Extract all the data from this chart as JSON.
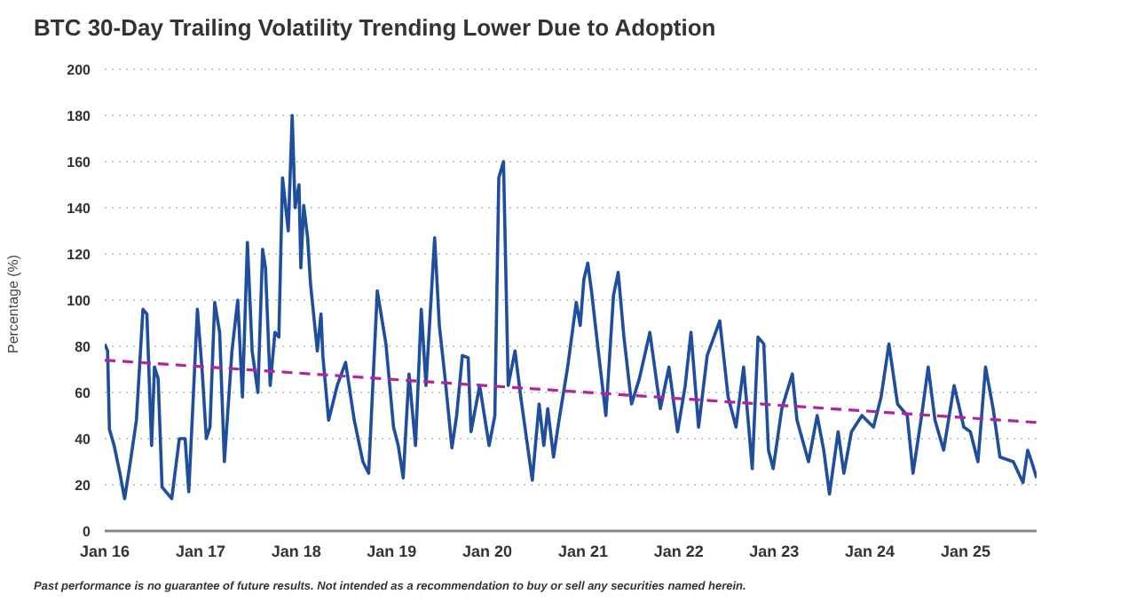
{
  "chart_data": {
    "type": "line",
    "title": "BTC 30-Day Trailing Volatility Trending Lower Due to Adoption",
    "ylabel": "Percentage (%)",
    "annotations": [
      "Past performance is no guarantee of future results. Not intended as a recommendation to buy or sell any securities named herein."
    ],
    "xlim": [
      "2016-01-01",
      "2025-09-29"
    ],
    "xticks": [
      {
        "value": "2016-01-01",
        "label": "Jan 16"
      },
      {
        "value": "2017-01-01",
        "label": "Jan 17"
      },
      {
        "value": "2018-01-01",
        "label": "Jan 18"
      },
      {
        "value": "2019-01-01",
        "label": "Jan 19"
      },
      {
        "value": "2020-01-01",
        "label": "Jan 20"
      },
      {
        "value": "2021-01-01",
        "label": "Jan 21"
      },
      {
        "value": "2022-01-01",
        "label": "Jan 22"
      },
      {
        "value": "2023-01-01",
        "label": "Jan 23"
      },
      {
        "value": "2024-01-01",
        "label": "Jan 24"
      },
      {
        "value": "2025-01-01",
        "label": "Jan 25"
      }
    ],
    "ylim": [
      0,
      200
    ],
    "yticks": [
      0,
      20,
      40,
      60,
      80,
      100,
      120,
      140,
      160,
      180,
      200
    ],
    "grid": "y",
    "marker": "none",
    "series": [
      {
        "type": "line",
        "color": "#1f4e9c",
        "line_style": "solid",
        "x": [
          "2016-01-01",
          "2016-01-12",
          "2016-01-19",
          "2016-02-06",
          "2016-02-28",
          "2016-03-17",
          "2016-04-08",
          "2016-05-01",
          "2016-05-26",
          "2016-06-10",
          "2016-06-28",
          "2016-07-09",
          "2016-07-23",
          "2016-08-07",
          "2016-09-13",
          "2016-10-12",
          "2016-11-03",
          "2016-11-17",
          "2016-12-20",
          "2017-01-08",
          "2017-01-23",
          "2017-02-06",
          "2017-02-24",
          "2017-03-15",
          "2017-04-02",
          "2017-05-01",
          "2017-05-23",
          "2017-06-10",
          "2017-06-29",
          "2017-07-17",
          "2017-08-08",
          "2017-08-26",
          "2017-09-06",
          "2017-09-24",
          "2017-10-12",
          "2017-10-27",
          "2017-11-10",
          "2017-12-02",
          "2017-12-17",
          "2017-12-28",
          "2018-01-12",
          "2018-01-19",
          "2018-01-30",
          "2018-02-14",
          "2018-02-25",
          "2018-03-23",
          "2018-04-06",
          "2018-04-13",
          "2018-05-05",
          "2018-06-07",
          "2018-07-09",
          "2018-08-11",
          "2018-09-13",
          "2018-10-05",
          "2018-11-07",
          "2018-12-10",
          "2019-01-08",
          "2019-01-26",
          "2019-02-14",
          "2019-03-08",
          "2019-04-02",
          "2019-04-24",
          "2019-05-12",
          "2019-06-14",
          "2019-07-02",
          "2019-07-24",
          "2019-08-19",
          "2019-09-06",
          "2019-09-28",
          "2019-10-20",
          "2019-10-31",
          "2019-12-03",
          "2020-01-08",
          "2020-01-30",
          "2020-02-14",
          "2020-03-03",
          "2020-03-21",
          "2020-04-16",
          "2020-05-08",
          "2020-06-21",
          "2020-07-17",
          "2020-08-04",
          "2020-08-19",
          "2020-09-10",
          "2020-10-01",
          "2020-11-03",
          "2020-12-06",
          "2020-12-21",
          "2021-01-04",
          "2021-01-19",
          "2021-02-02",
          "2021-02-28",
          "2021-03-29",
          "2021-04-27",
          "2021-05-15",
          "2021-06-06",
          "2021-07-05",
          "2021-08-04",
          "2021-09-13",
          "2021-10-23",
          "2021-11-25",
          "2021-12-28",
          "2022-01-26",
          "2022-02-17",
          "2022-03-18",
          "2022-04-20",
          "2022-06-07",
          "2022-07-09",
          "2022-08-08",
          "2022-09-06",
          "2022-10-09",
          "2022-10-31",
          "2022-11-22",
          "2022-12-10",
          "2022-12-28",
          "2023-01-30",
          "2023-03-11",
          "2023-03-29",
          "2023-05-12",
          "2023-06-14",
          "2023-07-09",
          "2023-07-31",
          "2023-09-02",
          "2023-09-24",
          "2023-10-23",
          "2023-12-02",
          "2024-01-15",
          "2024-02-13",
          "2024-03-14",
          "2024-04-16",
          "2024-05-23",
          "2024-06-14",
          "2024-07-17",
          "2024-08-11",
          "2024-09-06",
          "2024-10-09",
          "2024-11-18",
          "2024-12-25",
          "2025-01-19",
          "2025-02-17",
          "2025-03-18",
          "2025-04-16",
          "2025-05-12",
          "2025-07-02",
          "2025-08-08",
          "2025-08-26",
          "2025-09-10",
          "2025-09-29"
        ],
        "values": [
          81,
          78,
          44,
          37,
          25,
          14,
          30,
          48,
          96,
          94,
          37,
          71,
          66,
          19,
          14,
          40,
          40,
          17,
          96,
          68,
          40,
          45,
          99,
          86,
          30,
          78,
          100,
          58,
          125,
          78,
          60,
          122,
          114,
          63,
          86,
          84,
          153,
          130,
          180,
          140,
          150,
          114,
          141,
          127,
          107,
          78,
          94,
          76,
          48,
          63,
          73,
          48,
          30,
          25,
          104,
          81,
          45,
          37,
          23,
          68,
          37,
          96,
          63,
          127,
          89,
          66,
          36,
          50,
          76,
          75,
          43,
          63,
          37,
          50,
          153,
          160,
          63,
          78,
          58,
          22,
          55,
          37,
          53,
          32,
          48,
          71,
          99,
          89,
          109,
          116,
          104,
          78,
          50,
          102,
          112,
          84,
          55,
          66,
          86,
          53,
          71,
          43,
          63,
          86,
          45,
          76,
          91,
          58,
          45,
          71,
          27,
          84,
          81,
          35,
          27,
          53,
          68,
          48,
          30,
          50,
          35,
          16,
          43,
          25,
          43,
          50,
          45,
          58,
          81,
          55,
          50,
          25,
          50,
          71,
          48,
          35,
          63,
          45,
          43,
          30,
          71,
          53,
          32,
          30,
          21,
          35,
          30,
          23
        ]
      },
      {
        "type": "line",
        "color": "#b0259c",
        "line_style": "dashed",
        "x": [
          "2016-01-01",
          "2025-09-29"
        ],
        "values": [
          74,
          47
        ]
      }
    ]
  }
}
